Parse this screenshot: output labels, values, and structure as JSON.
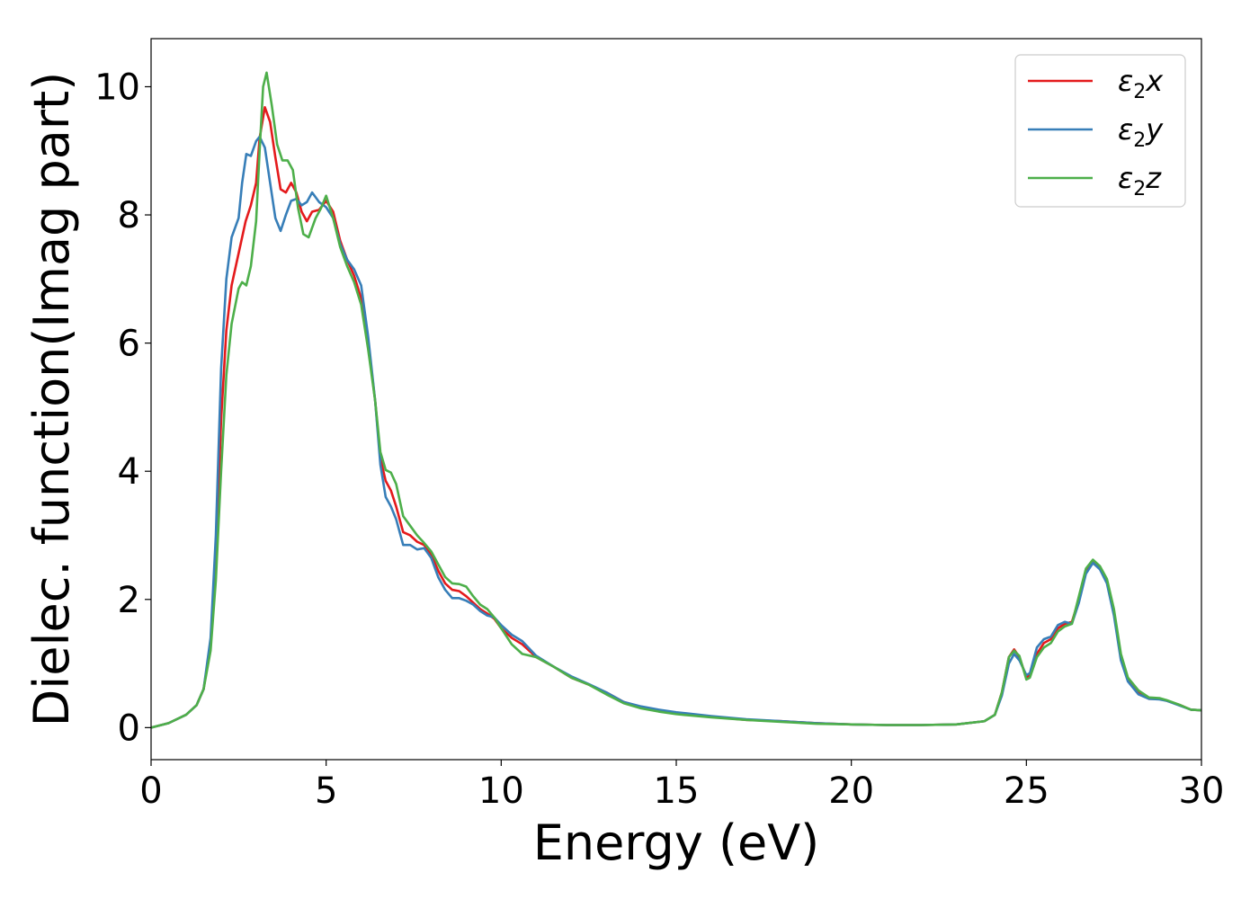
{
  "chart_data": {
    "type": "line",
    "title": "",
    "xlabel": "Energy (eV)",
    "ylabel": "Dielec. function(Imag part)",
    "xlim": [
      0,
      30
    ],
    "ylim": [
      -0.5,
      10.75
    ],
    "xticks": [
      0,
      5,
      10,
      15,
      20,
      25,
      30
    ],
    "yticks": [
      0,
      2,
      4,
      6,
      8,
      10
    ],
    "grid": false,
    "legend_position": "top-right",
    "series": [
      {
        "name": "ε2x",
        "legend_base": "ε",
        "legend_sub": "2",
        "legend_var": "x",
        "color": "#e41a1c",
        "points": [
          [
            0,
            0
          ],
          [
            0.5,
            0.07
          ],
          [
            1.0,
            0.2
          ],
          [
            1.3,
            0.35
          ],
          [
            1.5,
            0.6
          ],
          [
            1.7,
            1.3
          ],
          [
            1.85,
            2.6
          ],
          [
            2.0,
            4.8
          ],
          [
            2.15,
            6.2
          ],
          [
            2.3,
            6.9
          ],
          [
            2.5,
            7.4
          ],
          [
            2.7,
            7.9
          ],
          [
            2.85,
            8.15
          ],
          [
            3.0,
            8.5
          ],
          [
            3.1,
            9.2
          ],
          [
            3.25,
            9.68
          ],
          [
            3.4,
            9.45
          ],
          [
            3.55,
            8.9
          ],
          [
            3.7,
            8.4
          ],
          [
            3.85,
            8.35
          ],
          [
            4.0,
            8.5
          ],
          [
            4.15,
            8.35
          ],
          [
            4.3,
            8.05
          ],
          [
            4.45,
            7.9
          ],
          [
            4.6,
            8.05
          ],
          [
            4.8,
            8.08
          ],
          [
            5.0,
            8.22
          ],
          [
            5.2,
            8.05
          ],
          [
            5.4,
            7.6
          ],
          [
            5.6,
            7.3
          ],
          [
            5.8,
            7.05
          ],
          [
            6.0,
            6.7
          ],
          [
            6.2,
            6.0
          ],
          [
            6.4,
            5.1
          ],
          [
            6.55,
            4.2
          ],
          [
            6.7,
            3.85
          ],
          [
            6.85,
            3.7
          ],
          [
            7.0,
            3.45
          ],
          [
            7.2,
            3.05
          ],
          [
            7.4,
            3.0
          ],
          [
            7.6,
            2.9
          ],
          [
            7.8,
            2.85
          ],
          [
            8.0,
            2.7
          ],
          [
            8.2,
            2.45
          ],
          [
            8.4,
            2.25
          ],
          [
            8.6,
            2.15
          ],
          [
            8.8,
            2.13
          ],
          [
            9.0,
            2.05
          ],
          [
            9.2,
            1.95
          ],
          [
            9.4,
            1.85
          ],
          [
            9.6,
            1.78
          ],
          [
            9.8,
            1.7
          ],
          [
            10.0,
            1.55
          ],
          [
            10.3,
            1.4
          ],
          [
            10.6,
            1.3
          ],
          [
            11.0,
            1.1
          ],
          [
            11.5,
            0.95
          ],
          [
            12.0,
            0.78
          ],
          [
            12.5,
            0.67
          ],
          [
            13.0,
            0.55
          ],
          [
            13.5,
            0.4
          ],
          [
            14.0,
            0.32
          ],
          [
            14.5,
            0.27
          ],
          [
            15.0,
            0.22
          ],
          [
            16.0,
            0.17
          ],
          [
            17.0,
            0.12
          ],
          [
            18.0,
            0.1
          ],
          [
            19.0,
            0.07
          ],
          [
            20.0,
            0.05
          ],
          [
            21.0,
            0.04
          ],
          [
            22.0,
            0.04
          ],
          [
            23.0,
            0.05
          ],
          [
            23.8,
            0.1
          ],
          [
            24.1,
            0.2
          ],
          [
            24.3,
            0.55
          ],
          [
            24.5,
            1.1
          ],
          [
            24.65,
            1.22
          ],
          [
            24.8,
            1.1
          ],
          [
            25.0,
            0.78
          ],
          [
            25.1,
            0.82
          ],
          [
            25.3,
            1.15
          ],
          [
            25.5,
            1.32
          ],
          [
            25.7,
            1.38
          ],
          [
            25.9,
            1.55
          ],
          [
            26.1,
            1.62
          ],
          [
            26.3,
            1.65
          ],
          [
            26.5,
            2.0
          ],
          [
            26.7,
            2.45
          ],
          [
            26.9,
            2.6
          ],
          [
            27.1,
            2.5
          ],
          [
            27.3,
            2.3
          ],
          [
            27.5,
            1.8
          ],
          [
            27.7,
            1.1
          ],
          [
            27.9,
            0.75
          ],
          [
            28.2,
            0.55
          ],
          [
            28.5,
            0.45
          ],
          [
            28.8,
            0.45
          ],
          [
            29.0,
            0.42
          ],
          [
            29.4,
            0.35
          ],
          [
            29.7,
            0.28
          ],
          [
            30.0,
            0.27
          ]
        ]
      },
      {
        "name": "ε2y",
        "legend_base": "ε",
        "legend_sub": "2",
        "legend_var": "y",
        "color": "#377eb8",
        "points": [
          [
            0,
            0
          ],
          [
            0.5,
            0.07
          ],
          [
            1.0,
            0.2
          ],
          [
            1.3,
            0.35
          ],
          [
            1.5,
            0.6
          ],
          [
            1.7,
            1.4
          ],
          [
            1.85,
            3.0
          ],
          [
            2.0,
            5.6
          ],
          [
            2.15,
            7.0
          ],
          [
            2.3,
            7.65
          ],
          [
            2.5,
            7.95
          ],
          [
            2.6,
            8.5
          ],
          [
            2.72,
            8.95
          ],
          [
            2.85,
            8.92
          ],
          [
            3.0,
            9.15
          ],
          [
            3.1,
            9.22
          ],
          [
            3.25,
            9.05
          ],
          [
            3.4,
            8.5
          ],
          [
            3.55,
            7.95
          ],
          [
            3.7,
            7.75
          ],
          [
            3.85,
            8.0
          ],
          [
            4.0,
            8.22
          ],
          [
            4.15,
            8.25
          ],
          [
            4.3,
            8.15
          ],
          [
            4.45,
            8.2
          ],
          [
            4.6,
            8.35
          ],
          [
            4.8,
            8.2
          ],
          [
            5.0,
            8.12
          ],
          [
            5.2,
            7.95
          ],
          [
            5.4,
            7.55
          ],
          [
            5.6,
            7.3
          ],
          [
            5.8,
            7.15
          ],
          [
            6.0,
            6.9
          ],
          [
            6.2,
            6.1
          ],
          [
            6.4,
            5.1
          ],
          [
            6.55,
            4.1
          ],
          [
            6.7,
            3.6
          ],
          [
            6.85,
            3.45
          ],
          [
            7.0,
            3.25
          ],
          [
            7.2,
            2.85
          ],
          [
            7.4,
            2.85
          ],
          [
            7.6,
            2.78
          ],
          [
            7.8,
            2.8
          ],
          [
            8.0,
            2.65
          ],
          [
            8.2,
            2.35
          ],
          [
            8.4,
            2.15
          ],
          [
            8.6,
            2.02
          ],
          [
            8.8,
            2.02
          ],
          [
            9.0,
            1.98
          ],
          [
            9.2,
            1.92
          ],
          [
            9.4,
            1.82
          ],
          [
            9.6,
            1.75
          ],
          [
            9.8,
            1.72
          ],
          [
            10.0,
            1.6
          ],
          [
            10.3,
            1.45
          ],
          [
            10.6,
            1.35
          ],
          [
            11.0,
            1.12
          ],
          [
            11.5,
            0.95
          ],
          [
            12.0,
            0.8
          ],
          [
            12.5,
            0.68
          ],
          [
            13.0,
            0.55
          ],
          [
            13.5,
            0.4
          ],
          [
            14.0,
            0.33
          ],
          [
            14.5,
            0.28
          ],
          [
            15.0,
            0.24
          ],
          [
            16.0,
            0.18
          ],
          [
            17.0,
            0.13
          ],
          [
            18.0,
            0.1
          ],
          [
            19.0,
            0.07
          ],
          [
            20.0,
            0.05
          ],
          [
            21.0,
            0.04
          ],
          [
            22.0,
            0.04
          ],
          [
            23.0,
            0.05
          ],
          [
            23.8,
            0.1
          ],
          [
            24.1,
            0.2
          ],
          [
            24.3,
            0.5
          ],
          [
            24.5,
            1.0
          ],
          [
            24.65,
            1.15
          ],
          [
            24.8,
            1.05
          ],
          [
            25.0,
            0.82
          ],
          [
            25.1,
            0.85
          ],
          [
            25.3,
            1.25
          ],
          [
            25.5,
            1.38
          ],
          [
            25.7,
            1.42
          ],
          [
            25.9,
            1.6
          ],
          [
            26.1,
            1.65
          ],
          [
            26.3,
            1.62
          ],
          [
            26.5,
            1.95
          ],
          [
            26.7,
            2.4
          ],
          [
            26.9,
            2.57
          ],
          [
            27.1,
            2.47
          ],
          [
            27.3,
            2.25
          ],
          [
            27.5,
            1.75
          ],
          [
            27.7,
            1.05
          ],
          [
            27.9,
            0.72
          ],
          [
            28.2,
            0.52
          ],
          [
            28.5,
            0.45
          ],
          [
            28.8,
            0.44
          ],
          [
            29.0,
            0.42
          ],
          [
            29.4,
            0.34
          ],
          [
            29.7,
            0.28
          ],
          [
            30.0,
            0.27
          ]
        ]
      },
      {
        "name": "ε2z",
        "legend_base": "ε",
        "legend_sub": "2",
        "legend_var": "z",
        "color": "#4daf4a",
        "points": [
          [
            0,
            0
          ],
          [
            0.5,
            0.07
          ],
          [
            1.0,
            0.2
          ],
          [
            1.3,
            0.35
          ],
          [
            1.5,
            0.6
          ],
          [
            1.7,
            1.2
          ],
          [
            1.85,
            2.3
          ],
          [
            2.0,
            4.0
          ],
          [
            2.15,
            5.5
          ],
          [
            2.3,
            6.3
          ],
          [
            2.5,
            6.85
          ],
          [
            2.6,
            6.95
          ],
          [
            2.72,
            6.9
          ],
          [
            2.85,
            7.2
          ],
          [
            3.0,
            7.9
          ],
          [
            3.1,
            9.0
          ],
          [
            3.2,
            10.0
          ],
          [
            3.3,
            10.22
          ],
          [
            3.45,
            9.7
          ],
          [
            3.6,
            9.1
          ],
          [
            3.75,
            8.85
          ],
          [
            3.9,
            8.85
          ],
          [
            4.05,
            8.7
          ],
          [
            4.2,
            8.1
          ],
          [
            4.35,
            7.7
          ],
          [
            4.5,
            7.65
          ],
          [
            4.7,
            7.95
          ],
          [
            4.85,
            8.1
          ],
          [
            5.0,
            8.3
          ],
          [
            5.2,
            7.95
          ],
          [
            5.4,
            7.5
          ],
          [
            5.6,
            7.2
          ],
          [
            5.8,
            6.95
          ],
          [
            6.0,
            6.6
          ],
          [
            6.2,
            5.9
          ],
          [
            6.4,
            5.1
          ],
          [
            6.55,
            4.3
          ],
          [
            6.7,
            4.02
          ],
          [
            6.85,
            3.98
          ],
          [
            7.0,
            3.8
          ],
          [
            7.2,
            3.3
          ],
          [
            7.4,
            3.15
          ],
          [
            7.6,
            3.0
          ],
          [
            7.8,
            2.88
          ],
          [
            8.0,
            2.75
          ],
          [
            8.2,
            2.55
          ],
          [
            8.4,
            2.35
          ],
          [
            8.6,
            2.25
          ],
          [
            8.8,
            2.24
          ],
          [
            9.0,
            2.2
          ],
          [
            9.2,
            2.05
          ],
          [
            9.4,
            1.92
          ],
          [
            9.6,
            1.85
          ],
          [
            9.8,
            1.72
          ],
          [
            10.0,
            1.55
          ],
          [
            10.3,
            1.3
          ],
          [
            10.6,
            1.15
          ],
          [
            11.0,
            1.1
          ],
          [
            11.5,
            0.95
          ],
          [
            12.0,
            0.78
          ],
          [
            12.5,
            0.67
          ],
          [
            13.0,
            0.52
          ],
          [
            13.5,
            0.38
          ],
          [
            14.0,
            0.3
          ],
          [
            14.5,
            0.25
          ],
          [
            15.0,
            0.21
          ],
          [
            16.0,
            0.16
          ],
          [
            17.0,
            0.12
          ],
          [
            18.0,
            0.09
          ],
          [
            19.0,
            0.06
          ],
          [
            20.0,
            0.05
          ],
          [
            21.0,
            0.04
          ],
          [
            22.0,
            0.04
          ],
          [
            23.0,
            0.05
          ],
          [
            23.8,
            0.1
          ],
          [
            24.1,
            0.2
          ],
          [
            24.3,
            0.55
          ],
          [
            24.5,
            1.1
          ],
          [
            24.65,
            1.2
          ],
          [
            24.8,
            1.12
          ],
          [
            25.0,
            0.75
          ],
          [
            25.1,
            0.78
          ],
          [
            25.3,
            1.1
          ],
          [
            25.5,
            1.25
          ],
          [
            25.7,
            1.32
          ],
          [
            25.9,
            1.5
          ],
          [
            26.1,
            1.58
          ],
          [
            26.3,
            1.62
          ],
          [
            26.5,
            2.05
          ],
          [
            26.7,
            2.48
          ],
          [
            26.9,
            2.62
          ],
          [
            27.1,
            2.52
          ],
          [
            27.3,
            2.32
          ],
          [
            27.5,
            1.85
          ],
          [
            27.7,
            1.15
          ],
          [
            27.9,
            0.78
          ],
          [
            28.2,
            0.58
          ],
          [
            28.5,
            0.47
          ],
          [
            28.8,
            0.46
          ],
          [
            29.0,
            0.43
          ],
          [
            29.4,
            0.35
          ],
          [
            29.7,
            0.28
          ],
          [
            30.0,
            0.27
          ]
        ]
      }
    ]
  }
}
